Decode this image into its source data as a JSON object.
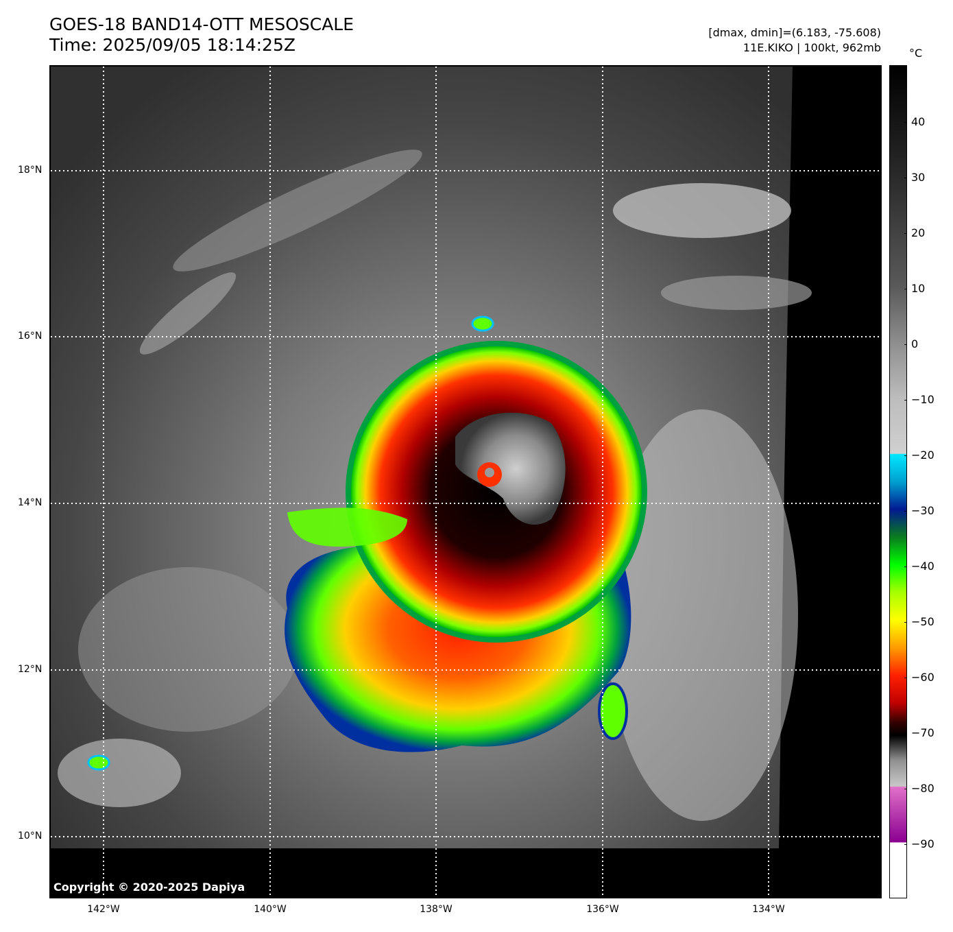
{
  "header": {
    "title": "GOES-18 BAND14-OTT MESOSCALE",
    "time": "Time: 2025/09/05 18:14:25Z",
    "dminmax": "[dmax, dmin]=(6.183, -75.608)",
    "storm": "11E.KIKO | 100kt, 962mb"
  },
  "map": {
    "lat_labels": [
      "18°N",
      "16°N",
      "14°N",
      "12°N",
      "10°N"
    ],
    "lon_labels": [
      "142°W",
      "140°W",
      "138°W",
      "136°W",
      "134°W"
    ],
    "copyright": "Copyright © 2020-2025 Dapiya",
    "storm_center": {
      "lat": 14.3,
      "lon": -137.3
    }
  },
  "colorbar": {
    "unit": "°C",
    "ticks": [
      "40",
      "30",
      "20",
      "10",
      "0",
      "−10",
      "−20",
      "−30",
      "−40",
      "−50",
      "−60",
      "−70",
      "−80",
      "−90"
    ]
  },
  "colors": {
    "cold_top_red": "#e00000",
    "eye_grey": "#9a9a9a",
    "background_cloud": "#3a3a3a",
    "no_data": "#000000"
  }
}
